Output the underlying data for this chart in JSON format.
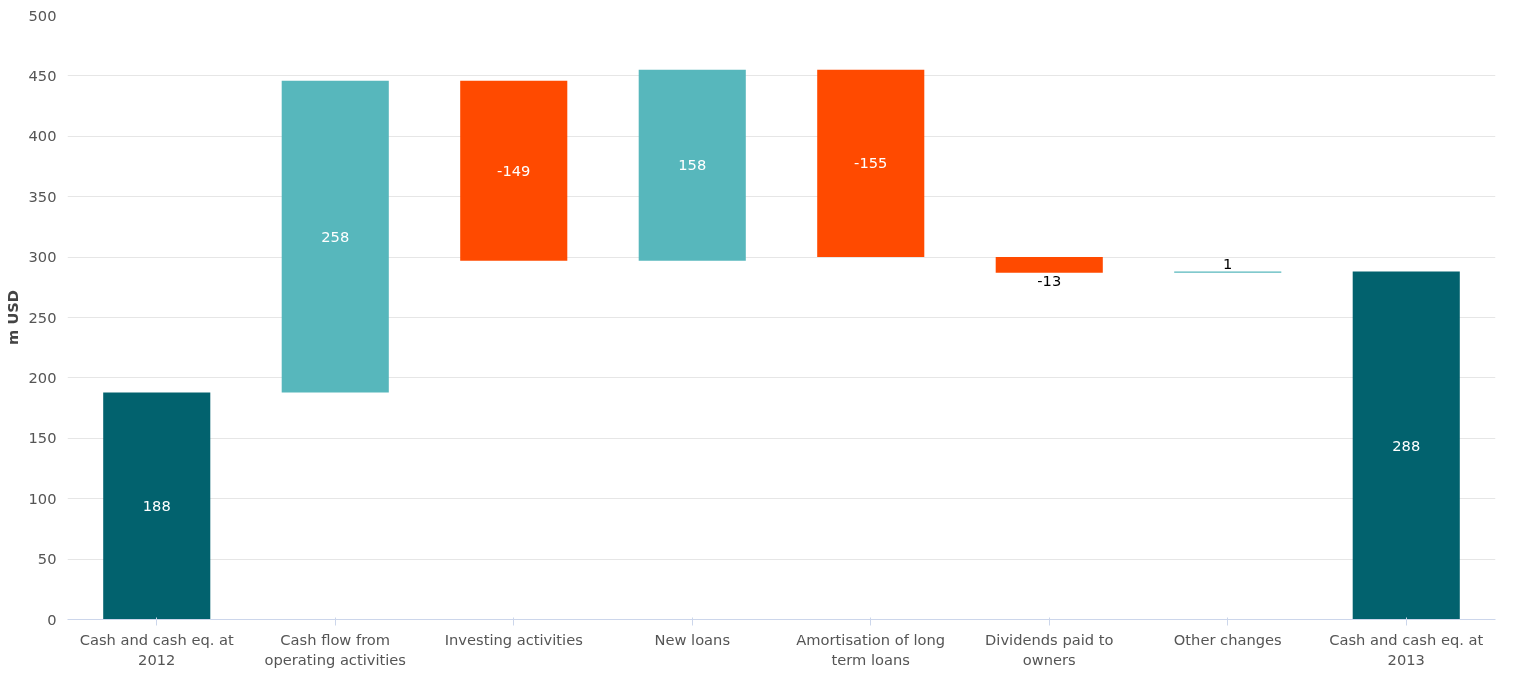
{
  "chart_data": {
    "type": "bar",
    "ylabel": "m USD",
    "categories": [
      "Cash and cash eq. at 2012",
      "Cash flow from operating activities",
      "Investing activities",
      "New loans",
      "Amortisation of long term loans",
      "Dividends paid to owners",
      "Other changes",
      "Cash and cash eq. at 2013"
    ],
    "values": [
      188,
      258,
      -149,
      158,
      -155,
      -13,
      1,
      288
    ],
    "base": [
      0,
      188,
      446,
      297,
      455,
      300,
      287,
      0
    ],
    "colors": [
      "#02626e",
      "#57b7bc",
      "#ff4a00",
      "#57b7bc",
      "#ff4a00",
      "#ff4a00",
      "#57b7bc",
      "#02626e"
    ],
    "ylim": [
      0,
      500
    ],
    "yticks": [
      0,
      50,
      100,
      150,
      200,
      250,
      300,
      350,
      400,
      450,
      500
    ],
    "grid": "y",
    "data_labels": true
  }
}
